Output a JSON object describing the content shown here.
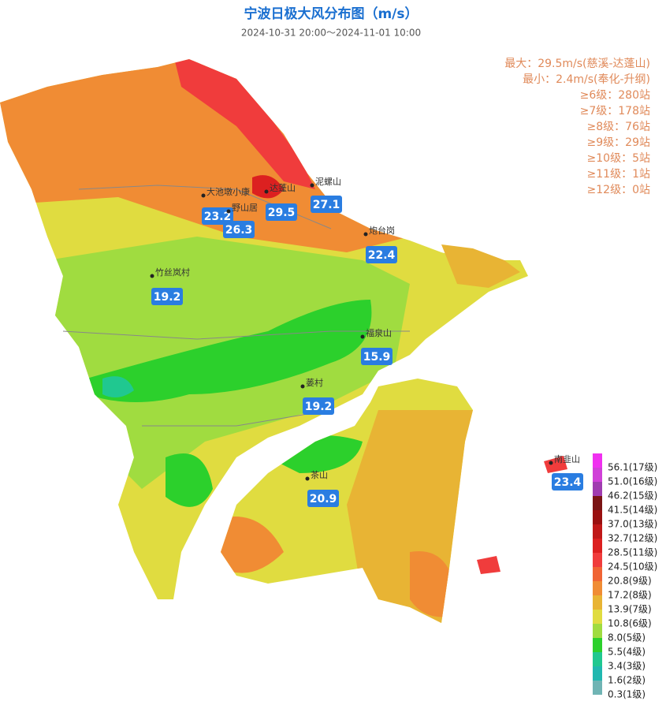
{
  "title": "宁波日极大风分布图（m/s）",
  "subtitle": "2024-10-31  20:00～2024-11-01 10:00",
  "stats": [
    "最大：29.5m/s(慈溪-达蓬山)",
    "最小：2.4m/s(奉化-升纲)",
    "≥6级：280站",
    "≥7级：178站",
    "≥8级：76站",
    "≥9级：29站",
    "≥10级：5站",
    "≥11级：1站",
    "≥12级：0站"
  ],
  "stations": [
    {
      "name": "大池墩小康",
      "value": 23.2
    },
    {
      "name": "野山居",
      "value": 26.3
    },
    {
      "name": "达蓬山",
      "value": 29.5
    },
    {
      "name": "泥螺山",
      "value": 27.1
    },
    {
      "name": "炮台岗",
      "value": 22.4
    },
    {
      "name": "竹丝岚村",
      "value": 19.2
    },
    {
      "name": "福泉山",
      "value": 15.9
    },
    {
      "name": "蒌村",
      "value": 19.2
    },
    {
      "name": "茶山",
      "value": 20.9
    },
    {
      "name": "南韭山",
      "value": 23.4
    }
  ],
  "legend": [
    {
      "label": "56.1(17级)",
      "color": "#f030f0"
    },
    {
      "label": "51.0(16级)",
      "color": "#d040d8"
    },
    {
      "label": "46.2(15级)",
      "color": "#a03cb0"
    },
    {
      "label": "41.5(14级)",
      "color": "#7a1414"
    },
    {
      "label": "37.0(13级)",
      "color": "#9a1010"
    },
    {
      "label": "32.7(12级)",
      "color": "#c01818"
    },
    {
      "label": "28.5(11级)",
      "color": "#dc2020"
    },
    {
      "label": "24.5(10级)",
      "color": "#f03c3c"
    },
    {
      "label": "20.8(9级)",
      "color": "#f06434"
    },
    {
      "label": "17.2(8级)",
      "color": "#f08c34"
    },
    {
      "label": "13.9(7级)",
      "color": "#e8b434"
    },
    {
      "label": "10.8(6级)",
      "color": "#e0dc40"
    },
    {
      "label": "8.0(5级)",
      "color": "#a0dc40"
    },
    {
      "label": "5.5(4级)",
      "color": "#2cd02c"
    },
    {
      "label": "3.4(3级)",
      "color": "#20c890"
    },
    {
      "label": "1.6(2级)",
      "color": "#20b8b0"
    },
    {
      "label": "0.3(1级)",
      "color": "#70b4b4"
    }
  ]
}
